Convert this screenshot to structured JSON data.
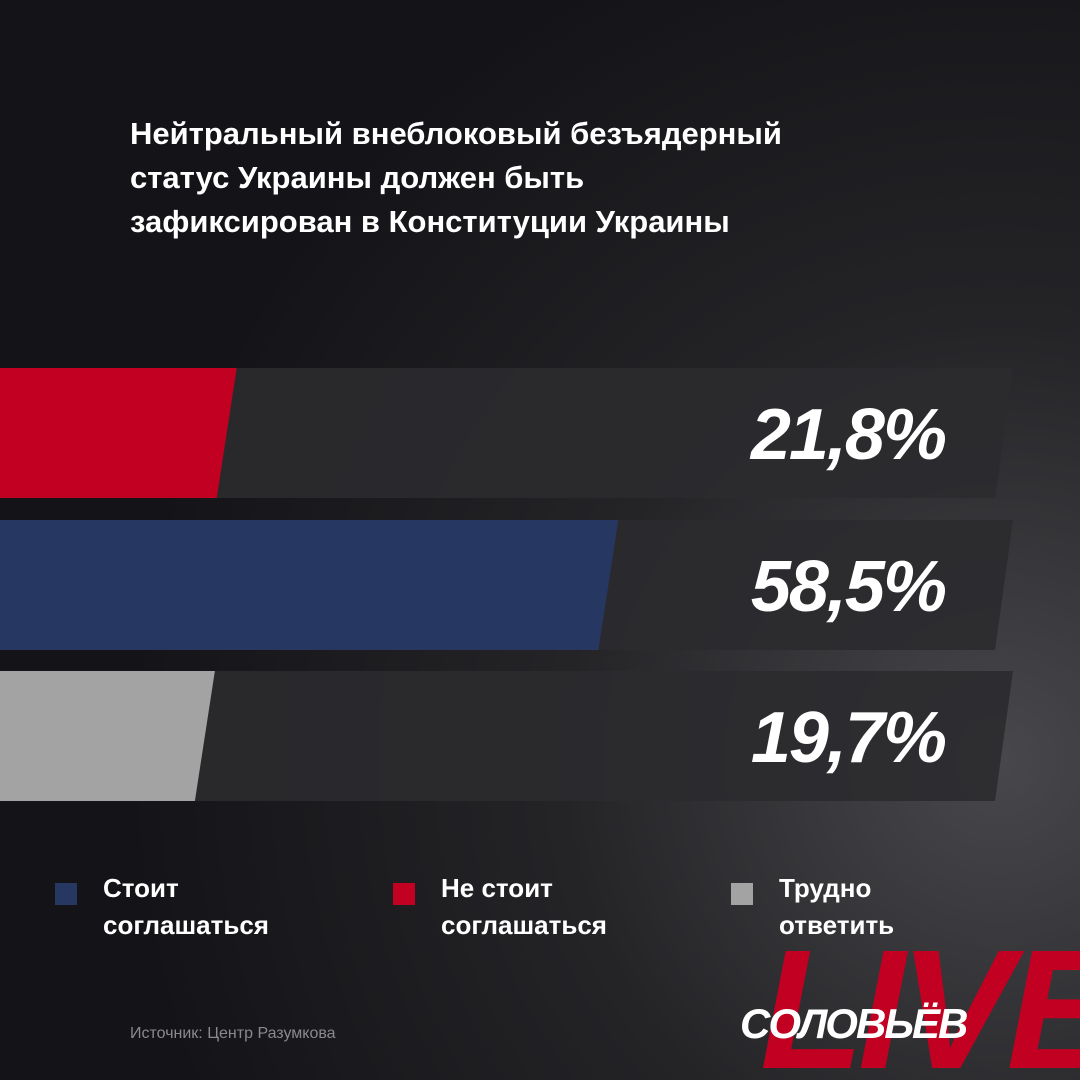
{
  "chart_data": {
    "type": "hbar",
    "title": "Нейтральный внеблоковый безъядерный статус Украины должен быть зафиксирован в Конституции Украины",
    "values": [
      21.8,
      58.5,
      19.7
    ],
    "value_labels": [
      "21,8%",
      "58,5%",
      "19,7%"
    ],
    "colors": [
      "#c20021",
      "#263862",
      "#a3a3a3"
    ],
    "xlim": [
      0,
      100
    ],
    "legend": [
      {
        "name": "Стоит соглашаться",
        "color": "#263862"
      },
      {
        "name": "Не стоит соглашаться",
        "color": "#c20021"
      },
      {
        "name": "Трудно ответить",
        "color": "#a3a3a3"
      }
    ]
  },
  "source": "Источник: Центр Разумкова",
  "logo": {
    "name": "СОЛОВЬЁВ",
    "live": "LIVE"
  }
}
